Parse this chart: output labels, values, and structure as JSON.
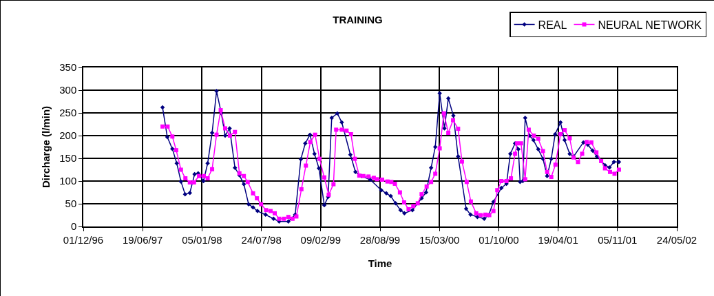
{
  "chart_data": {
    "type": "line",
    "title": "TRAINING",
    "xlabel": "Time",
    "ylabel": "Dircharge (l/min)",
    "xlim": [
      "1996-12-01",
      "2002-05-24"
    ],
    "xticks": [
      {
        "value": "1996-12-01",
        "label": "01/12/96"
      },
      {
        "value": "1997-06-19",
        "label": "19/06/97"
      },
      {
        "value": "1998-01-05",
        "label": "05/01/98"
      },
      {
        "value": "1998-07-24",
        "label": "24/07/98"
      },
      {
        "value": "1999-02-09",
        "label": "09/02/99"
      },
      {
        "value": "1999-08-28",
        "label": "28/08/99"
      },
      {
        "value": "2000-03-15",
        "label": "15/03/00"
      },
      {
        "value": "2000-10-01",
        "label": "01/10/00"
      },
      {
        "value": "2001-04-19",
        "label": "19/04/01"
      },
      {
        "value": "2001-11-05",
        "label": "05/11/01"
      },
      {
        "value": "2002-05-24",
        "label": "24/05/02"
      }
    ],
    "ylim": [
      0,
      350
    ],
    "yticks": [
      0,
      50,
      100,
      150,
      200,
      250,
      300,
      350
    ],
    "grid": true,
    "legend": "top right",
    "line_style": "solid",
    "series": [
      {
        "name": "REAL",
        "color": "#000080",
        "marker": "diamond",
        "x": [
          "1997-08-25",
          "1997-09-10",
          "1997-09-27",
          "1997-10-12",
          "1997-10-26",
          "1997-11-09",
          "1997-11-25",
          "1997-12-11",
          "1997-12-23",
          "1998-01-10",
          "1998-01-24",
          "1998-02-08",
          "1998-02-23",
          "1998-03-11",
          "1998-03-24",
          "1998-04-08",
          "1998-04-26",
          "1998-05-11",
          "1998-05-26",
          "1998-06-11",
          "1998-06-26",
          "1998-07-11",
          "1998-08-07",
          "1998-09-03",
          "1998-09-22",
          "1998-10-23",
          "1998-11-15",
          "1998-12-04",
          "1998-12-19",
          "1999-01-04",
          "1999-01-19",
          "1999-02-03",
          "1999-02-21",
          "1999-03-06",
          "1999-03-18",
          "1999-04-06",
          "1999-04-21",
          "1999-05-20",
          "1999-06-06",
          "1999-06-26",
          "1999-07-26",
          "1999-09-01",
          "1999-09-18",
          "1999-10-03",
          "1999-10-19",
          "1999-11-05",
          "1999-11-18",
          "1999-12-15",
          "2000-01-15",
          "2000-01-30",
          "2000-02-16",
          "2000-03-01",
          "2000-03-16",
          "2000-04-01",
          "2000-04-14",
          "2000-05-01",
          "2000-05-17",
          "2000-06-13",
          "2000-06-28",
          "2000-07-21",
          "2000-08-13",
          "2000-08-28",
          "2000-09-13",
          "2000-10-10",
          "2000-10-27",
          "2000-11-09",
          "2000-11-25",
          "2000-12-06",
          "2000-12-12",
          "2000-12-21",
          "2000-12-29",
          "2001-01-12",
          "2001-01-26",
          "2001-02-11",
          "2001-02-27",
          "2001-03-13",
          "2001-03-27",
          "2001-04-09",
          "2001-04-27",
          "2001-05-11",
          "2001-05-28",
          "2001-06-10",
          "2001-07-13",
          "2001-07-28",
          "2001-08-13",
          "2001-08-28",
          "2001-09-24",
          "2001-10-09",
          "2001-10-24",
          "2001-11-10"
        ],
        "values": [
          262,
          197,
          171,
          139,
          99,
          71,
          74,
          115,
          117,
          100,
          139,
          206,
          298,
          249,
          200,
          216,
          129,
          113,
          93,
          49,
          42,
          34,
          26,
          17,
          11,
          11,
          26,
          148,
          183,
          202,
          160,
          128,
          47,
          65,
          239,
          249,
          229,
          158,
          120,
          111,
          103,
          80,
          73,
          67,
          51,
          36,
          29,
          36,
          62,
          75,
          129,
          175,
          293,
          216,
          282,
          244,
          154,
          39,
          26,
          21,
          17,
          25,
          54,
          85,
          94,
          160,
          183,
          170,
          98,
          100,
          239,
          200,
          190,
          170,
          149,
          111,
          149,
          203,
          229,
          190,
          160,
          154,
          185,
          180,
          167,
          154,
          135,
          130,
          142,
          142
        ]
      },
      {
        "name": "NEURAL NETWORK",
        "color": "#ff00ff",
        "marker": "square",
        "x": [
          "1997-08-25",
          "1997-09-11",
          "1997-09-27",
          "1997-10-10",
          "1997-10-26",
          "1997-11-10",
          "1997-11-25",
          "1997-12-09",
          "1997-12-26",
          "1998-01-11",
          "1998-01-24",
          "1998-02-08",
          "1998-02-23",
          "1998-03-09",
          "1998-03-24",
          "1998-04-09",
          "1998-04-26",
          "1998-05-11",
          "1998-05-26",
          "1998-06-08",
          "1998-06-26",
          "1998-07-09",
          "1998-07-23",
          "1998-08-09",
          "1998-08-24",
          "1998-09-07",
          "1998-09-22",
          "1998-10-08",
          "1998-10-23",
          "1998-11-06",
          "1998-11-19",
          "1998-12-06",
          "1998-12-21",
          "1999-01-05",
          "1999-01-21",
          "1999-02-05",
          "1999-02-21",
          "1999-03-08",
          "1999-03-24",
          "1999-04-02",
          "1999-04-21",
          "1999-05-07",
          "1999-05-22",
          "1999-06-04",
          "1999-06-19",
          "1999-07-03",
          "1999-07-20",
          "1999-08-07",
          "1999-08-18",
          "1999-09-04",
          "1999-09-22",
          "1999-10-05",
          "1999-10-17",
          "1999-11-03",
          "1999-11-17",
          "1999-12-02",
          "1999-12-18",
          "2000-01-02",
          "2000-01-15",
          "2000-02-01",
          "2000-02-16",
          "2000-03-01",
          "2000-03-16",
          "2000-03-30",
          "2000-04-14",
          "2000-04-30",
          "2000-05-17",
          "2000-05-30",
          "2000-06-15",
          "2000-06-29",
          "2000-07-17",
          "2000-08-01",
          "2000-08-17",
          "2000-08-30",
          "2000-09-13",
          "2000-09-26",
          "2000-10-10",
          "2000-10-27",
          "2000-11-11",
          "2000-11-25",
          "2000-12-02",
          "2000-12-15",
          "2000-12-29",
          "2001-01-10",
          "2001-01-27",
          "2001-02-11",
          "2001-02-27",
          "2001-03-13",
          "2001-03-27",
          "2001-04-10",
          "2001-04-27",
          "2001-05-11",
          "2001-05-28",
          "2001-06-10",
          "2001-06-25",
          "2001-07-09",
          "2001-07-24",
          "2001-08-09",
          "2001-08-26",
          "2001-09-11",
          "2001-09-24",
          "2001-10-11",
          "2001-10-26",
          "2001-11-10"
        ],
        "values": [
          220,
          220,
          198,
          168,
          125,
          106,
          97,
          97,
          111,
          111,
          106,
          126,
          202,
          256,
          216,
          200,
          208,
          117,
          111,
          98,
          73,
          62,
          49,
          36,
          34,
          29,
          17,
          17,
          21,
          17,
          22,
          82,
          134,
          186,
          202,
          149,
          108,
          70,
          93,
          213,
          213,
          211,
          203,
          149,
          112,
          111,
          110,
          107,
          104,
          103,
          99,
          98,
          94,
          75,
          53,
          38,
          45,
          51,
          71,
          88,
          98,
          116,
          172,
          249,
          206,
          234,
          215,
          143,
          98,
          55,
          29,
          25,
          26,
          25,
          34,
          80,
          100,
          100,
          106,
          160,
          183,
          183,
          104,
          213,
          200,
          193,
          166,
          120,
          109,
          136,
          203,
          212,
          194,
          152,
          142,
          160,
          186,
          185,
          163,
          144,
          128,
          120,
          116,
          125
        ]
      }
    ]
  }
}
